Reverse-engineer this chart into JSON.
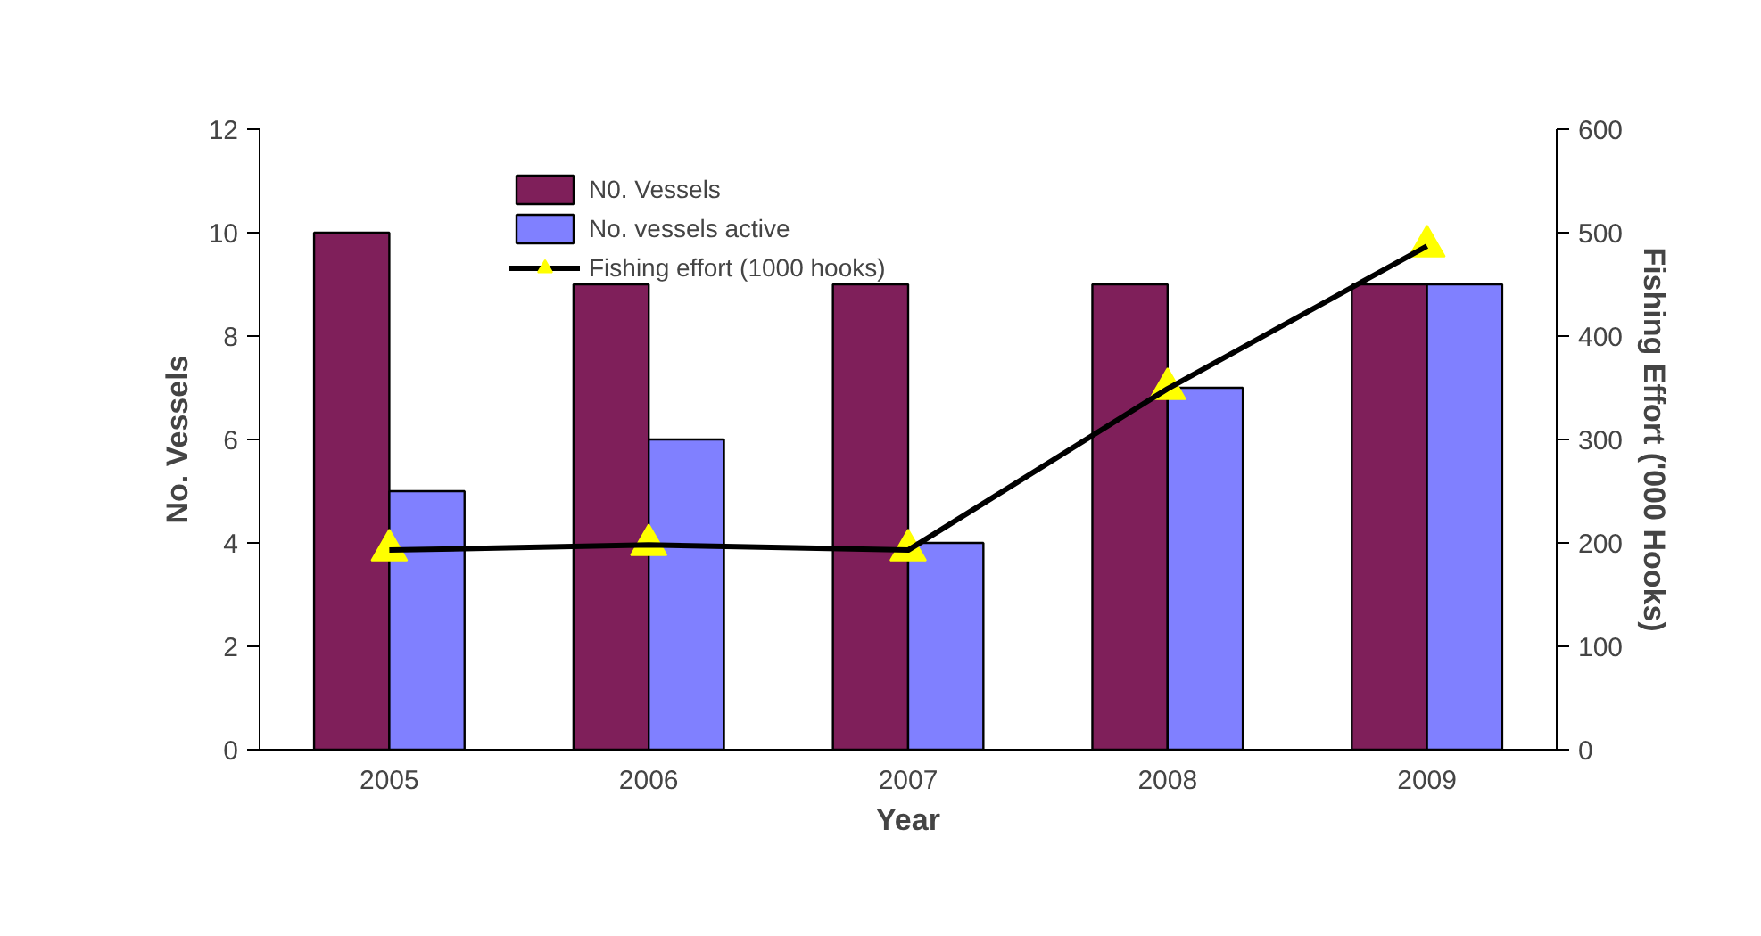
{
  "chart_data": {
    "type": "bar",
    "xlabel": "Year",
    "ylabel": "No. Vessels",
    "y2label": "Fishing Effort ('000 Hooks)",
    "categories": [
      "2005",
      "2006",
      "2007",
      "2008",
      "2009"
    ],
    "series": [
      {
        "name": "N0. Vessels",
        "color": "#7f1f5a",
        "values": [
          10,
          9,
          9,
          9,
          9
        ]
      },
      {
        "name": "No. vessels active",
        "color": "#8080ff",
        "values": [
          5,
          6,
          4,
          7,
          9
        ]
      },
      {
        "name": "Fishing effort (1000 hooks)",
        "type": "line",
        "axis": "y2",
        "color": "#000000",
        "marker": "triangle",
        "values": [
          193,
          198,
          193,
          349,
          487
        ]
      }
    ],
    "ylim": [
      0,
      12
    ],
    "yticks": [
      0,
      2,
      4,
      6,
      8,
      10,
      12
    ],
    "y2lim": [
      0,
      600
    ],
    "y2ticks": [
      0,
      100,
      200,
      300,
      400,
      500,
      600
    ],
    "grid": false,
    "legend": "top"
  }
}
